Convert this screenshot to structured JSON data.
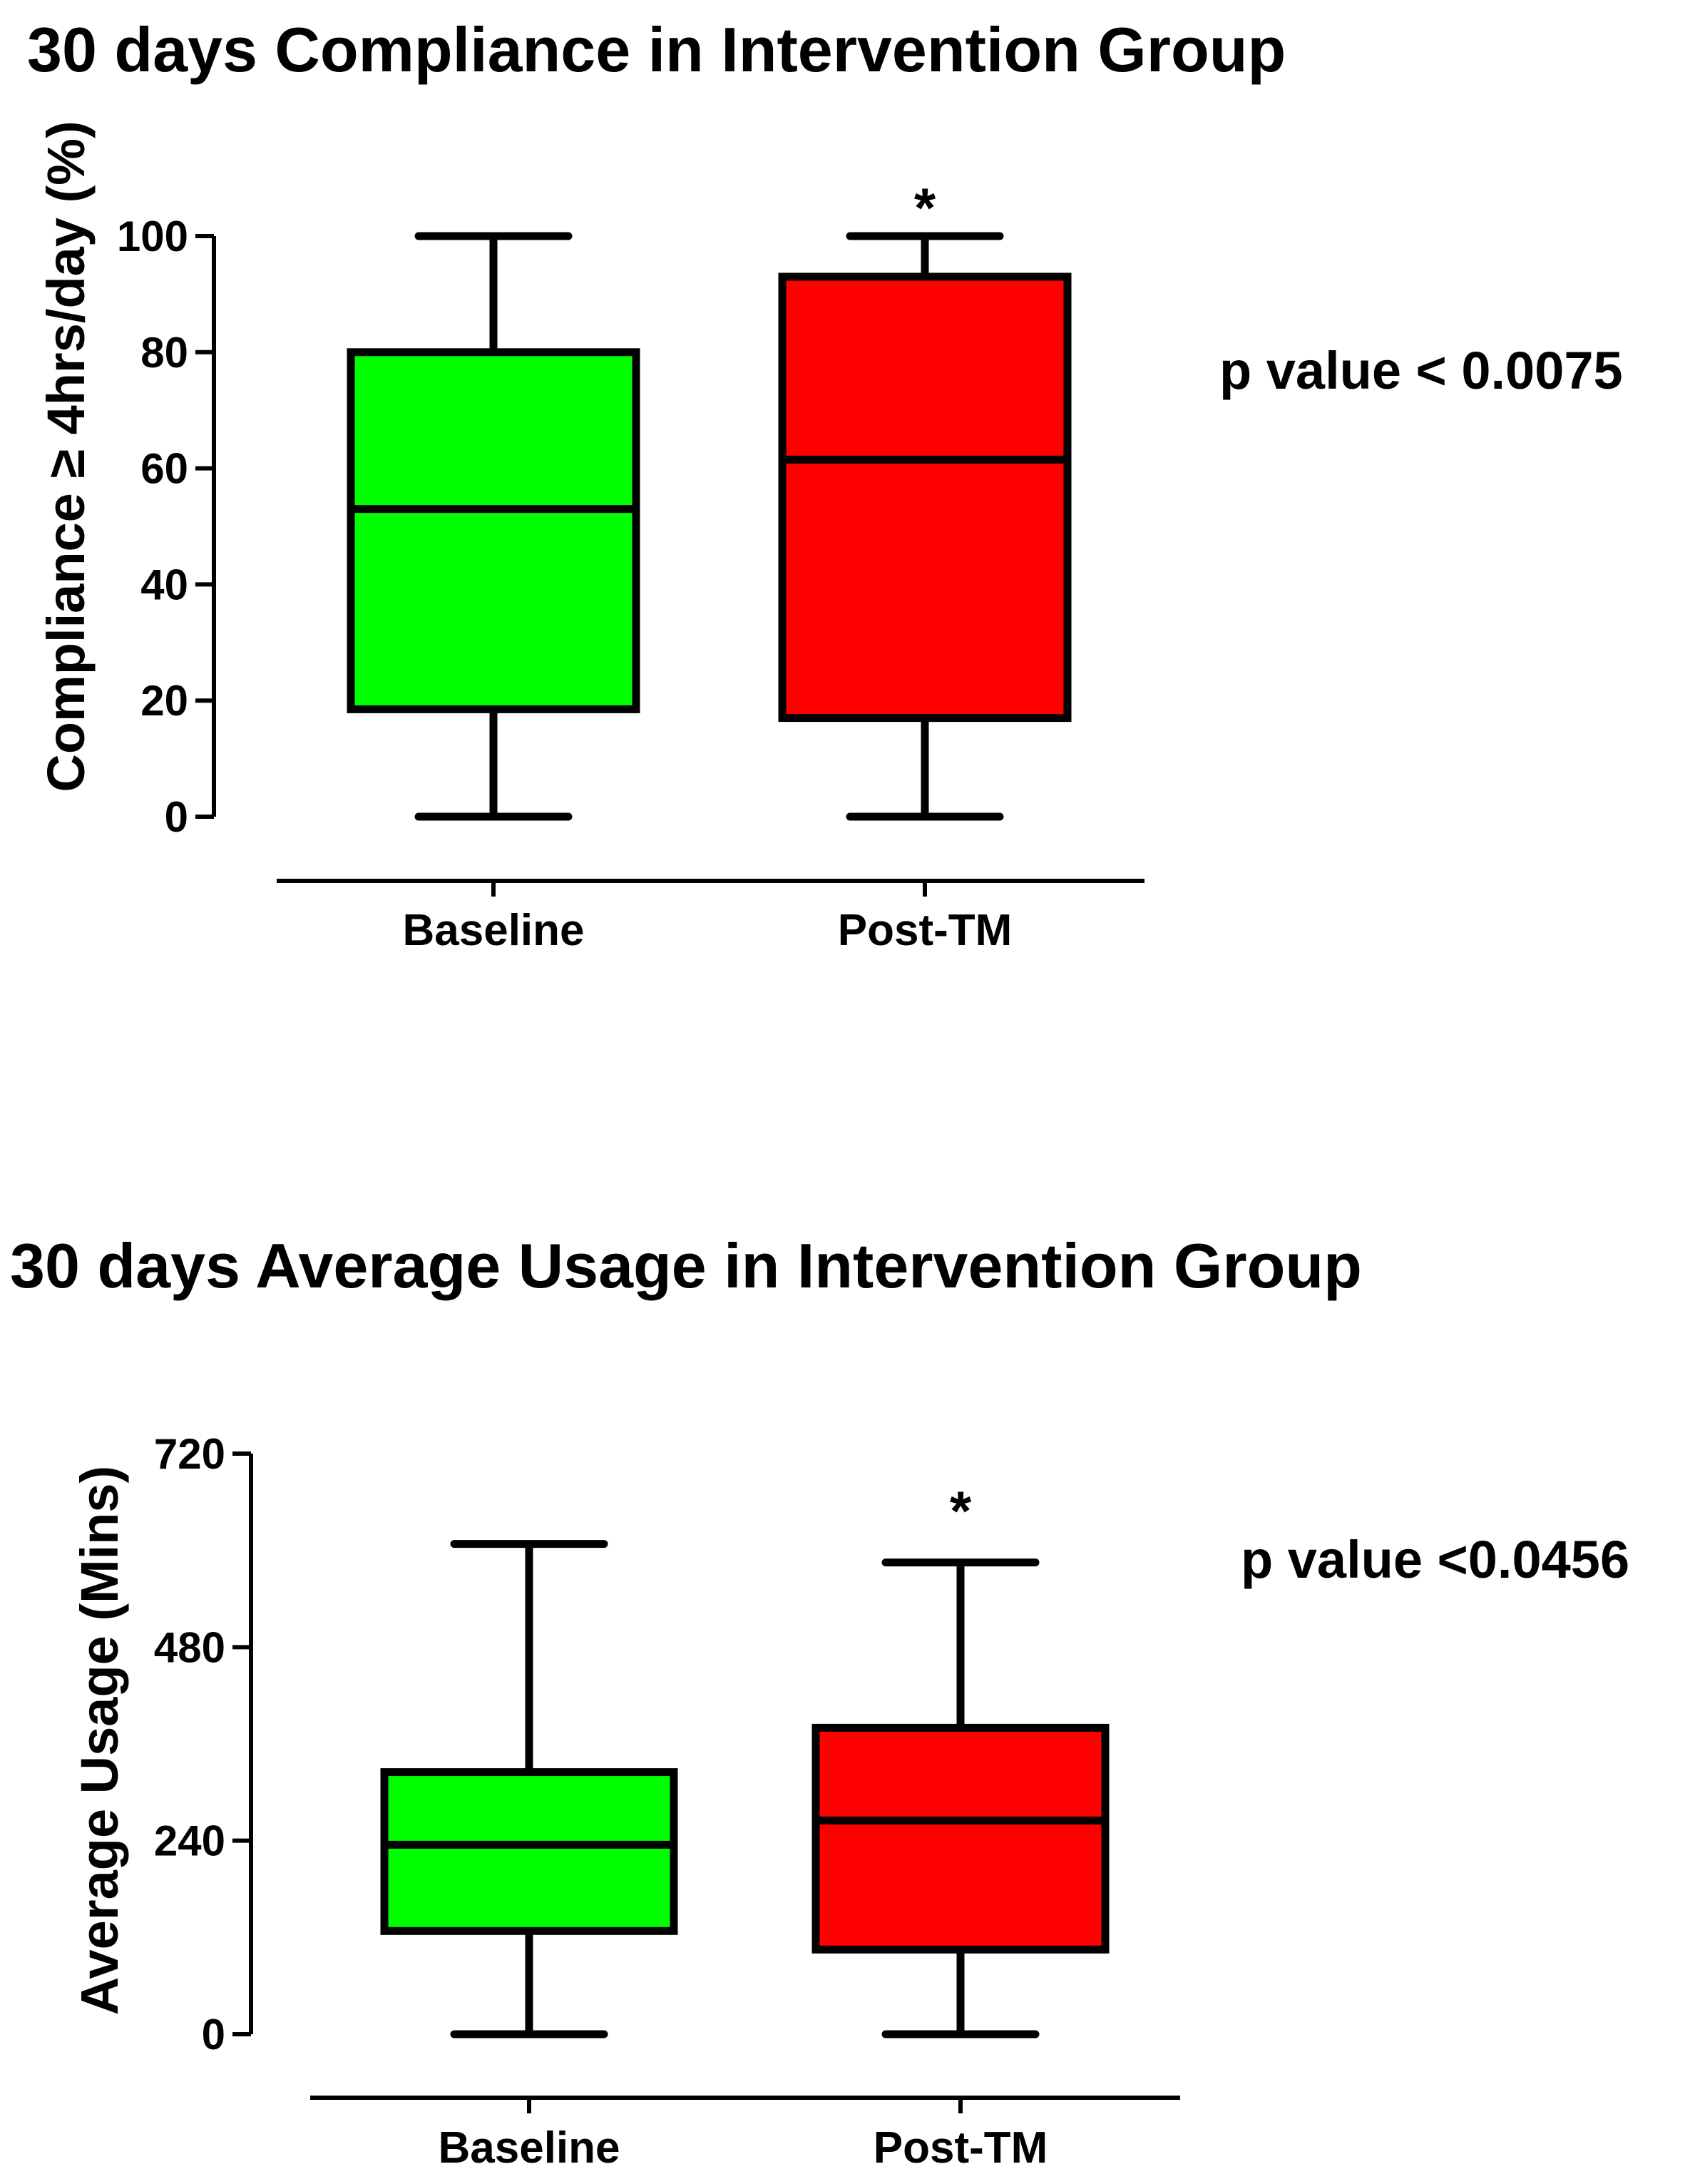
{
  "chart_data": [
    {
      "type": "box",
      "title": "30 days Compliance in Intervention Group",
      "ylabel": "Compliance ≥ 4hrs/day (%)",
      "xlabel": "",
      "ylim": [
        0,
        100
      ],
      "yticks": [
        0,
        20,
        40,
        60,
        80,
        100
      ],
      "tick_labels": [
        "0",
        "20",
        "40",
        "60",
        "80",
        "100"
      ],
      "categories": [
        "Baseline",
        "Post-TM"
      ],
      "boxes": [
        {
          "name": "Baseline",
          "min": 0,
          "q1": 18.5,
          "median": 53,
          "q3": 80,
          "max": 100,
          "color": "#00ff00",
          "significance": ""
        },
        {
          "name": "Post-TM",
          "min": 0,
          "q1": 17,
          "median": 61.5,
          "q3": 93,
          "max": 100,
          "color": "#ff0000",
          "significance": "*"
        }
      ],
      "annotation": "p value < 0.0075"
    },
    {
      "type": "box",
      "title": "30 days Average Usage in Intervention Group",
      "ylabel": "Average Usage (Mins)",
      "xlabel": "",
      "ylim": [
        0,
        720
      ],
      "yticks": [
        0,
        240,
        480,
        720
      ],
      "tick_labels": [
        "0",
        "240",
        "480",
        "720"
      ],
      "categories": [
        "Baseline",
        "Post-TM"
      ],
      "boxes": [
        {
          "name": "Baseline",
          "min": 0,
          "q1": 128,
          "median": 235,
          "q3": 325,
          "max": 608,
          "color": "#00ff00",
          "significance": ""
        },
        {
          "name": "Post-TM",
          "min": 0,
          "q1": 105,
          "median": 265,
          "q3": 380,
          "max": 585,
          "color": "#ff0000",
          "significance": "*"
        }
      ],
      "annotation": "p value <0.0456"
    }
  ]
}
